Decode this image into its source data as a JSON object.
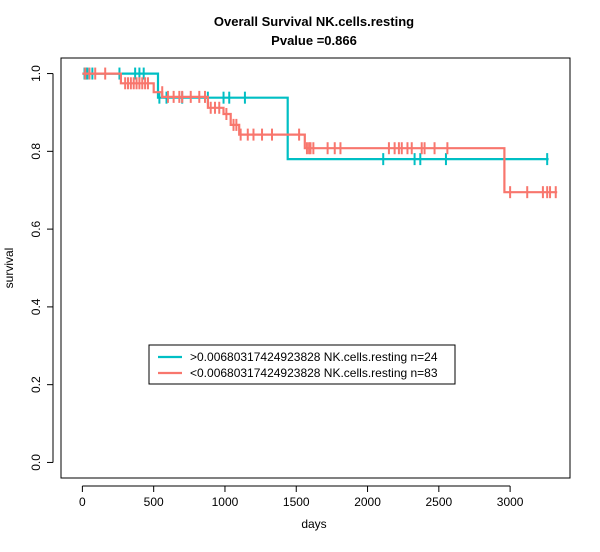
{
  "chart_data": {
    "type": "line",
    "subtype": "kaplan-meier step",
    "title": "Overall Survival NK.cells.resting",
    "subtitle": "Pvalue =0.866",
    "xlabel": "days",
    "ylabel": "survival",
    "xlim": [
      -150,
      3420
    ],
    "ylim": [
      -0.04,
      1.04
    ],
    "x_ticks": [
      0,
      500,
      1000,
      1500,
      2000,
      2500,
      3000
    ],
    "x_tick_labels": [
      "0",
      "500",
      "1000",
      "1500",
      "2000",
      "2500",
      "3000"
    ],
    "y_ticks": [
      0.0,
      0.2,
      0.4,
      0.6,
      0.8,
      1.0
    ],
    "y_tick_labels": [
      "0.0",
      "0.2",
      "0.4",
      "0.6",
      "0.8",
      "1.0"
    ],
    "grid": false,
    "legend_position": "bottom-left",
    "series": [
      {
        "name": ">0.00680317424923828 NK.cells.resting n=24",
        "color": "#00BFC4",
        "steps": [
          [
            0,
            1.0
          ],
          [
            530,
            1.0
          ],
          [
            530,
            0.938
          ],
          [
            1440,
            0.938
          ],
          [
            1440,
            0.78
          ],
          [
            3270,
            0.78
          ]
        ],
        "censor": [
          [
            15,
            1.0
          ],
          [
            25,
            1.0
          ],
          [
            35,
            1.0
          ],
          [
            70,
            1.0
          ],
          [
            260,
            1.0
          ],
          [
            370,
            1.0
          ],
          [
            400,
            1.0
          ],
          [
            430,
            1.0
          ],
          [
            540,
            0.938
          ],
          [
            590,
            0.938
          ],
          [
            700,
            0.938
          ],
          [
            880,
            0.938
          ],
          [
            990,
            0.938
          ],
          [
            1030,
            0.938
          ],
          [
            1140,
            0.938
          ],
          [
            2110,
            0.78
          ],
          [
            2330,
            0.78
          ],
          [
            2370,
            0.78
          ],
          [
            2550,
            0.78
          ],
          [
            3260,
            0.78
          ]
        ]
      },
      {
        "name": "<0.00680317424923828 NK.cells.resting n=83",
        "color": "#F8766D",
        "steps": [
          [
            0,
            1.0
          ],
          [
            270,
            1.0
          ],
          [
            270,
            0.975
          ],
          [
            500,
            0.975
          ],
          [
            500,
            0.952
          ],
          [
            560,
            0.952
          ],
          [
            560,
            0.94
          ],
          [
            880,
            0.94
          ],
          [
            880,
            0.912
          ],
          [
            990,
            0.912
          ],
          [
            990,
            0.896
          ],
          [
            1040,
            0.896
          ],
          [
            1040,
            0.868
          ],
          [
            1100,
            0.868
          ],
          [
            1100,
            0.843
          ],
          [
            1560,
            0.843
          ],
          [
            1560,
            0.808
          ],
          [
            2960,
            0.808
          ],
          [
            2960,
            0.695
          ],
          [
            3330,
            0.695
          ]
        ],
        "censor": [
          [
            20,
            1.0
          ],
          [
            50,
            1.0
          ],
          [
            90,
            1.0
          ],
          [
            160,
            1.0
          ],
          [
            300,
            0.975
          ],
          [
            320,
            0.975
          ],
          [
            340,
            0.975
          ],
          [
            360,
            0.975
          ],
          [
            380,
            0.975
          ],
          [
            400,
            0.975
          ],
          [
            420,
            0.975
          ],
          [
            440,
            0.975
          ],
          [
            460,
            0.975
          ],
          [
            560,
            0.952
          ],
          [
            600,
            0.94
          ],
          [
            640,
            0.94
          ],
          [
            680,
            0.94
          ],
          [
            700,
            0.94
          ],
          [
            760,
            0.94
          ],
          [
            820,
            0.94
          ],
          [
            860,
            0.94
          ],
          [
            900,
            0.912
          ],
          [
            930,
            0.912
          ],
          [
            960,
            0.912
          ],
          [
            1010,
            0.896
          ],
          [
            1060,
            0.868
          ],
          [
            1080,
            0.868
          ],
          [
            1110,
            0.843
          ],
          [
            1160,
            0.843
          ],
          [
            1200,
            0.843
          ],
          [
            1260,
            0.843
          ],
          [
            1330,
            0.843
          ],
          [
            1520,
            0.843
          ],
          [
            1575,
            0.808
          ],
          [
            1590,
            0.808
          ],
          [
            1600,
            0.808
          ],
          [
            1620,
            0.808
          ],
          [
            1720,
            0.808
          ],
          [
            1770,
            0.808
          ],
          [
            1810,
            0.808
          ],
          [
            2150,
            0.808
          ],
          [
            2190,
            0.808
          ],
          [
            2220,
            0.808
          ],
          [
            2240,
            0.808
          ],
          [
            2280,
            0.808
          ],
          [
            2310,
            0.808
          ],
          [
            2380,
            0.808
          ],
          [
            2400,
            0.808
          ],
          [
            2470,
            0.808
          ],
          [
            2560,
            0.808
          ],
          [
            3000,
            0.695
          ],
          [
            3120,
            0.695
          ],
          [
            3230,
            0.695
          ],
          [
            3260,
            0.695
          ],
          [
            3280,
            0.695
          ],
          [
            3320,
            0.695
          ]
        ]
      }
    ]
  }
}
